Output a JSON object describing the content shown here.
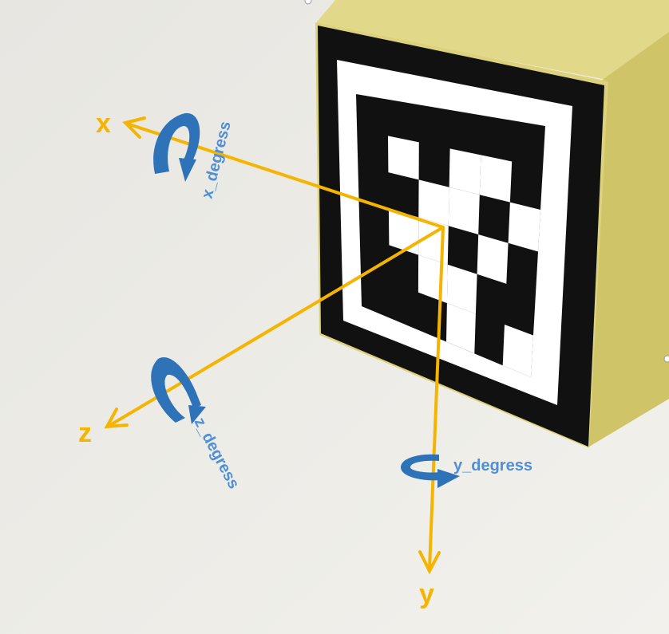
{
  "axes": {
    "x": {
      "label": "x"
    },
    "y": {
      "label": "y"
    },
    "z": {
      "label": "z"
    }
  },
  "rotations": {
    "x": {
      "label": "x_degress"
    },
    "y": {
      "label": "y_degress"
    },
    "z": {
      "label": "z_degress"
    }
  },
  "colors": {
    "axis": "#f5b400",
    "rotation_arrow": "#2e72b8",
    "rotation_text": "#4f8fd6",
    "cube": "#ddd27c",
    "cube_side": "#cfc468",
    "marker_black": "#111111",
    "marker_white": "#ffffff",
    "background": "#ecebe6"
  },
  "marker": {
    "grid": [
      [
        0,
        0,
        0,
        0,
        0,
        0
      ],
      [
        0,
        1,
        0,
        1,
        1,
        0
      ],
      [
        0,
        0,
        1,
        1,
        0,
        1
      ],
      [
        0,
        1,
        1,
        0,
        1,
        0
      ],
      [
        0,
        0,
        1,
        1,
        0,
        0
      ],
      [
        0,
        0,
        0,
        1,
        0,
        1
      ]
    ]
  }
}
